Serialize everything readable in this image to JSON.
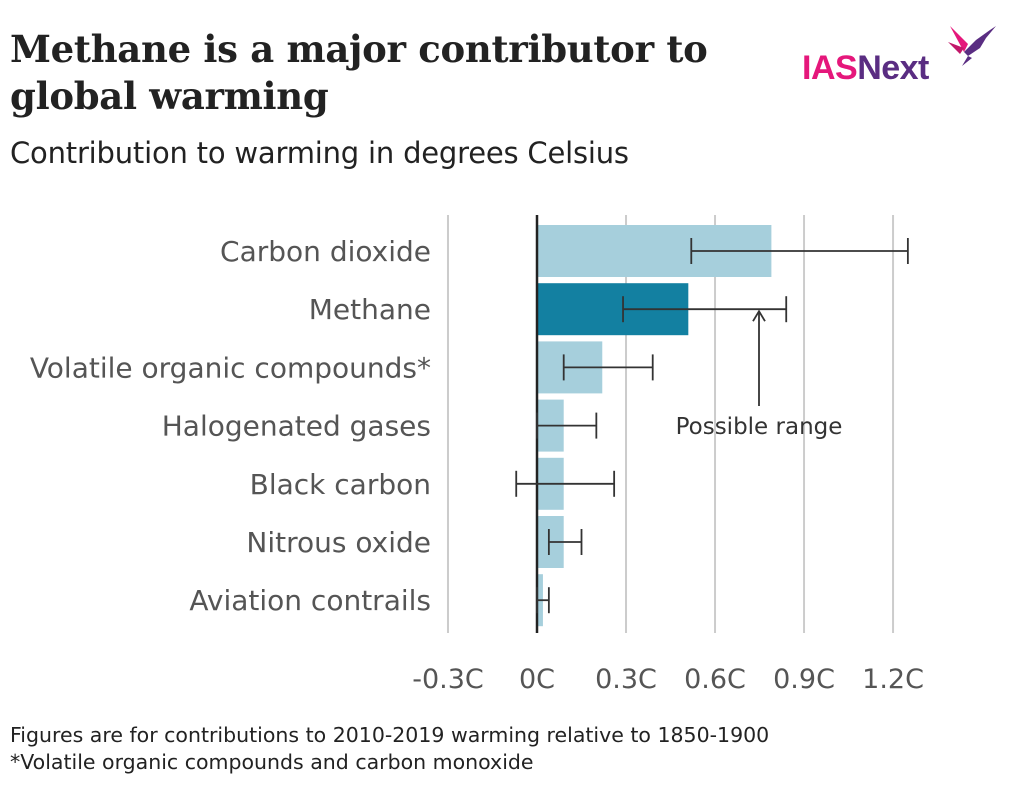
{
  "header": {
    "title": "Methane is a major contributor to global warming",
    "subtitle": "Contribution to warming in degrees Celsius"
  },
  "logo": {
    "part1": "IAS",
    "part2": "Next",
    "colors": {
      "part1": "#e5177b",
      "part2": "#5a2d82"
    },
    "icon": "hummingbird-icon"
  },
  "footnotes": [
    "Figures are for contributions to 2010-2019 warming relative to 1850-1900",
    "*Volatile organic compounds and carbon monoxide"
  ],
  "chart_data": {
    "type": "bar",
    "orientation": "horizontal",
    "title": "Methane is a major contributor to global warming",
    "subtitle": "Contribution to warming in degrees Celsius",
    "categories": [
      "Carbon dioxide",
      "Methane",
      "Volatile organic compounds*",
      "Halogenated gases",
      "Black carbon",
      "Nitrous oxide",
      "Aviation contrails"
    ],
    "values": [
      0.79,
      0.51,
      0.22,
      0.09,
      0.09,
      0.09,
      0.02
    ],
    "error_low": [
      0.52,
      0.29,
      0.09,
      0.0,
      -0.07,
      0.04,
      0.0
    ],
    "error_high": [
      1.25,
      0.84,
      0.39,
      0.2,
      0.26,
      0.15,
      0.04
    ],
    "highlight": "Methane",
    "annotation": {
      "text": "Possible range",
      "target": "Methane"
    },
    "xlim": [
      -0.3,
      1.2
    ],
    "xticks": [
      -0.3,
      0,
      0.3,
      0.6,
      0.9,
      1.2
    ],
    "xtick_labels": [
      "-0.3C",
      "0C",
      "0.3C",
      "0.6C",
      "0.9C",
      "1.2C"
    ],
    "grid": true,
    "colors": {
      "bar": "#a6cfdc",
      "highlight": "#1380a1",
      "grid": "#cccccc",
      "axis": "#222222",
      "errorbar": "#333333"
    }
  }
}
